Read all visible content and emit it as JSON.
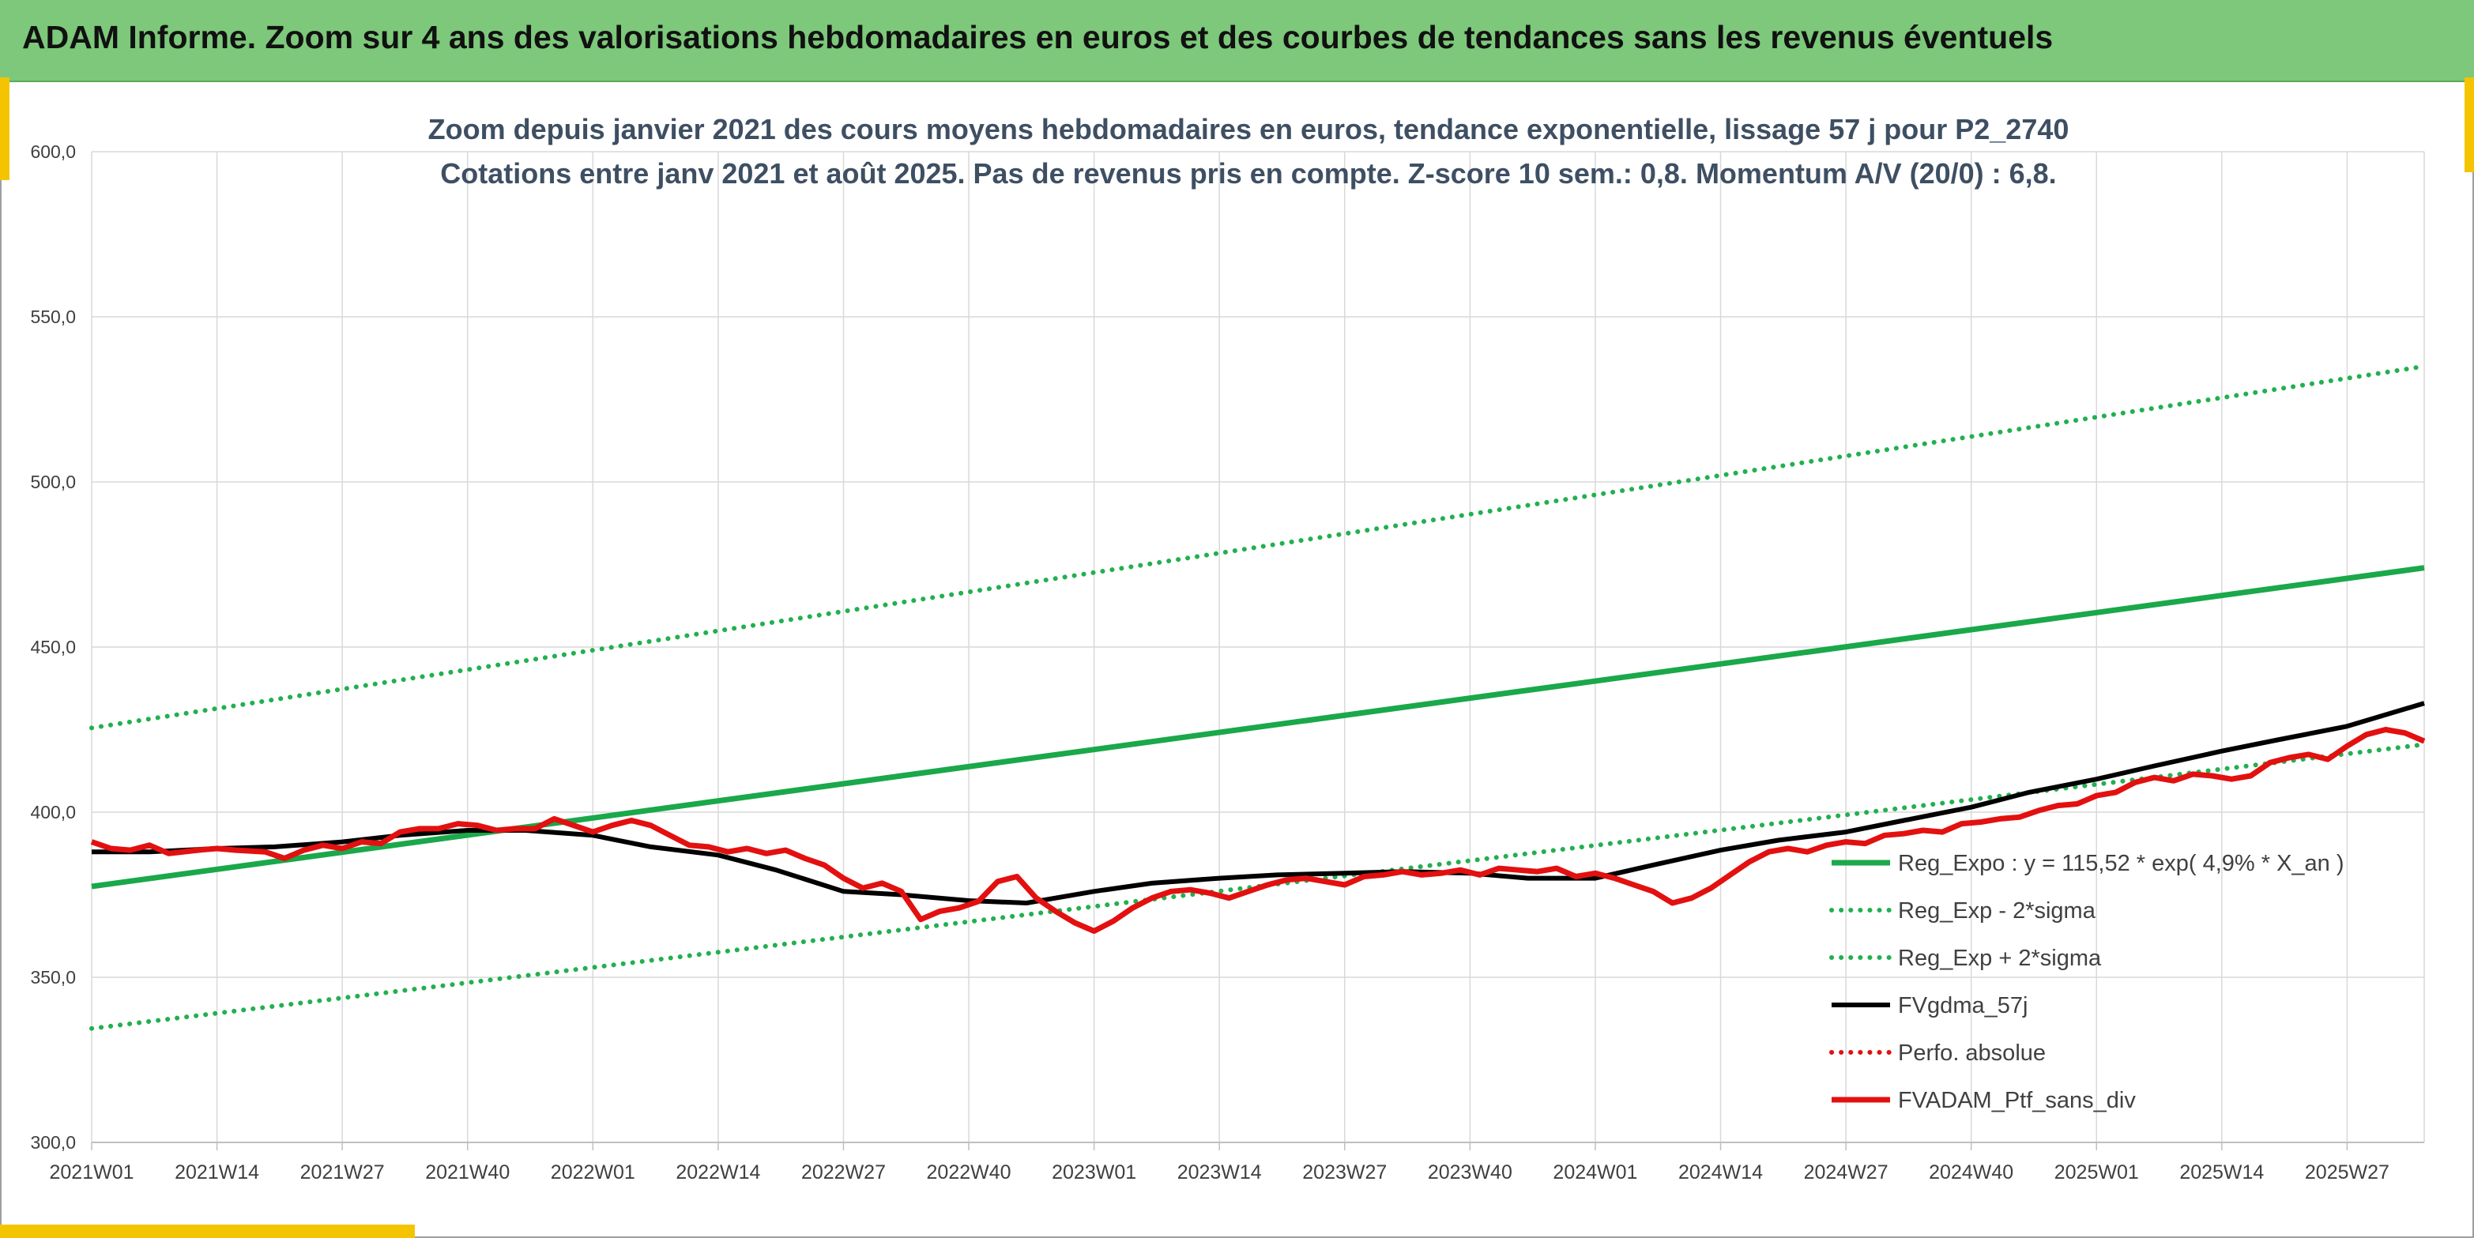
{
  "banner": {
    "title": "ADAM Informe. Zoom sur 4 ans des valorisations hebdomadaires en euros et des courbes de tendances sans les revenus éventuels"
  },
  "colors": {
    "banner_bg": "#7dc87a",
    "accent": "#f5c400",
    "reg_green": "#1aa84a",
    "sigma_green": "#22b04f",
    "fvgdma_black": "#000000",
    "red": "#e31010"
  },
  "chart_data": {
    "type": "line",
    "title": "Zoom depuis janvier 2021 des cours moyens hebdomadaires en euros, tendance exponentielle, lissage 57 j pour P2_2740",
    "subtitle": "Cotations entre janv 2021 et août 2025. Pas de revenus pris en compte. Z-score 10 sem.: 0,8. Momentum A/V (20/0) : 6,8.",
    "ylim": [
      300,
      600
    ],
    "y_ticks": [
      "300,0",
      "350,0",
      "400,0",
      "450,0",
      "500,0",
      "550,0",
      "600,0"
    ],
    "x_ticks": [
      "2021W01",
      "2021W14",
      "2021W27",
      "2021W40",
      "2022W01",
      "2022W14",
      "2022W27",
      "2022W40",
      "2023W01",
      "2023W14",
      "2023W27",
      "2023W40",
      "2024W01",
      "2024W14",
      "2024W27",
      "2024W40",
      "2025W01",
      "2025W14",
      "2025W27"
    ],
    "x_range_weeks": [
      0,
      242
    ],
    "grid": true,
    "legend_position": "right",
    "series": [
      {
        "name": "Reg_Expo : y = 115,52 * exp( 4,9% *  X_an )",
        "style": "solid-thick",
        "color": "#1aa84a",
        "x": [
          0,
          242
        ],
        "values": [
          377.5,
          474
        ]
      },
      {
        "name": "Reg_Exp - 2*sigma",
        "style": "dotted",
        "color": "#22b04f",
        "x": [
          0,
          242
        ],
        "values": [
          334.5,
          420.5
        ]
      },
      {
        "name": "Reg_Exp + 2*sigma",
        "style": "dotted",
        "color": "#22b04f",
        "x": [
          0,
          242
        ],
        "values": [
          425.5,
          535
        ]
      },
      {
        "name": "FVgdma_57j",
        "style": "solid",
        "color": "#000000",
        "x": [
          0,
          6,
          13,
          19,
          26,
          32,
          39,
          45,
          52,
          58,
          65,
          71,
          78,
          84,
          91,
          97,
          104,
          110,
          117,
          123,
          130,
          136,
          143,
          149,
          156,
          162,
          169,
          175,
          182,
          188,
          195,
          201,
          208,
          214,
          221,
          227,
          234,
          242
        ],
        "values": [
          388,
          388,
          389,
          389.5,
          391,
          393,
          394.5,
          394.5,
          393,
          389.5,
          387,
          382.5,
          376,
          375,
          373.2,
          372.5,
          376,
          378.5,
          380,
          381,
          381.5,
          382,
          381.5,
          380,
          380,
          384,
          388.5,
          391.5,
          394,
          397.5,
          401.5,
          406,
          410,
          414,
          418.5,
          422,
          426,
          433
        ]
      },
      {
        "name": "Perfo. absolue",
        "style": "dotted",
        "color": "#e31010",
        "x": [],
        "values": []
      },
      {
        "name": "FVADAM_Ptf_sans_div",
        "style": "solid-thick",
        "color": "#e31010",
        "x": [
          0,
          2,
          4,
          6,
          8,
          11,
          13,
          15,
          18,
          20,
          22,
          24,
          26,
          28,
          30,
          32,
          34,
          36,
          38,
          40,
          42,
          44,
          46,
          48,
          50,
          52,
          54,
          56,
          58,
          60,
          62,
          64,
          66,
          68,
          70,
          72,
          74,
          76,
          78,
          80,
          82,
          84,
          86,
          88,
          90,
          92,
          94,
          96,
          98,
          100,
          102,
          104,
          106,
          108,
          110,
          112,
          114,
          116,
          118,
          120,
          122,
          124,
          126,
          128,
          130,
          132,
          134,
          136,
          138,
          140,
          142,
          144,
          146,
          148,
          150,
          152,
          154,
          156,
          158,
          160,
          162,
          164,
          166,
          168,
          170,
          172,
          174,
          176,
          178,
          180,
          182,
          184,
          186,
          188,
          190,
          192,
          194,
          196,
          198,
          200,
          202,
          204,
          206,
          208,
          210,
          212,
          214,
          216,
          218,
          220,
          222,
          224,
          226,
          228,
          230,
          232,
          234,
          236,
          238,
          240,
          242
        ],
        "values": [
          391,
          389,
          388.5,
          390,
          387.5,
          388.5,
          389,
          388.5,
          388,
          386,
          388.5,
          390,
          389,
          391,
          390.5,
          394,
          395,
          395,
          396.5,
          396,
          394.5,
          395,
          395,
          398,
          396,
          394,
          396,
          397.5,
          396,
          393,
          390,
          389.5,
          388,
          389,
          387.5,
          388.5,
          386,
          384,
          380,
          377,
          378.5,
          376,
          367.5,
          370,
          371,
          373,
          379,
          380.5,
          374,
          370,
          366.5,
          364,
          367,
          371,
          374,
          376,
          376.5,
          375.5,
          374,
          376,
          378,
          379.5,
          380,
          379,
          378,
          380.5,
          381,
          382,
          381,
          381.5,
          382.5,
          381,
          383,
          382.5,
          382,
          383,
          380.5,
          381.5,
          380,
          378,
          376,
          372.5,
          374,
          377,
          381,
          385,
          388,
          389,
          388,
          390,
          391,
          390.5,
          393,
          393.5,
          394.5,
          394,
          396.5,
          397,
          398,
          398.5,
          400.5,
          402,
          402.5,
          405,
          406,
          409,
          410.5,
          409.5,
          411.5,
          411,
          410,
          411,
          415,
          416.5,
          417.5,
          416,
          420,
          423.5,
          425,
          424,
          421.5
        ]
      }
    ]
  }
}
